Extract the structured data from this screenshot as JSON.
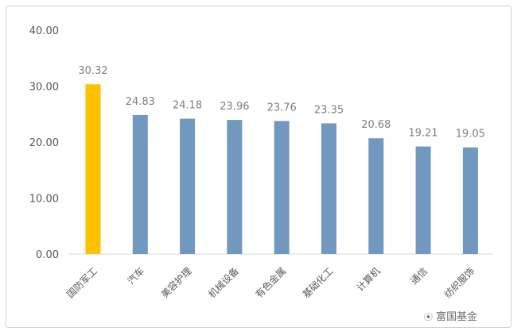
{
  "chart_data": {
    "type": "bar",
    "categories": [
      "国防军工",
      "汽车",
      "美容护理",
      "机械设备",
      "有色金属",
      "基础化工",
      "计算机",
      "通信",
      "纺织服饰"
    ],
    "values": [
      30.32,
      24.83,
      24.18,
      23.96,
      23.76,
      23.35,
      20.68,
      19.21,
      19.05
    ],
    "data_labels": [
      "30.32",
      "24.83",
      "24.18",
      "23.96",
      "23.76",
      "23.35",
      "20.68",
      "19.21",
      "19.05"
    ],
    "ytick_labels": [
      "0.00",
      "10.00",
      "20.00",
      "30.00",
      "40.00"
    ],
    "ylim": [
      0,
      40
    ],
    "grid": false,
    "legend": "none",
    "colors": {
      "highlight": "#FFC000",
      "default": "#7198BE",
      "axis": "#d9d9d9"
    }
  },
  "watermark": {
    "text": "富国基金",
    "icon": "wechat-icon"
  }
}
